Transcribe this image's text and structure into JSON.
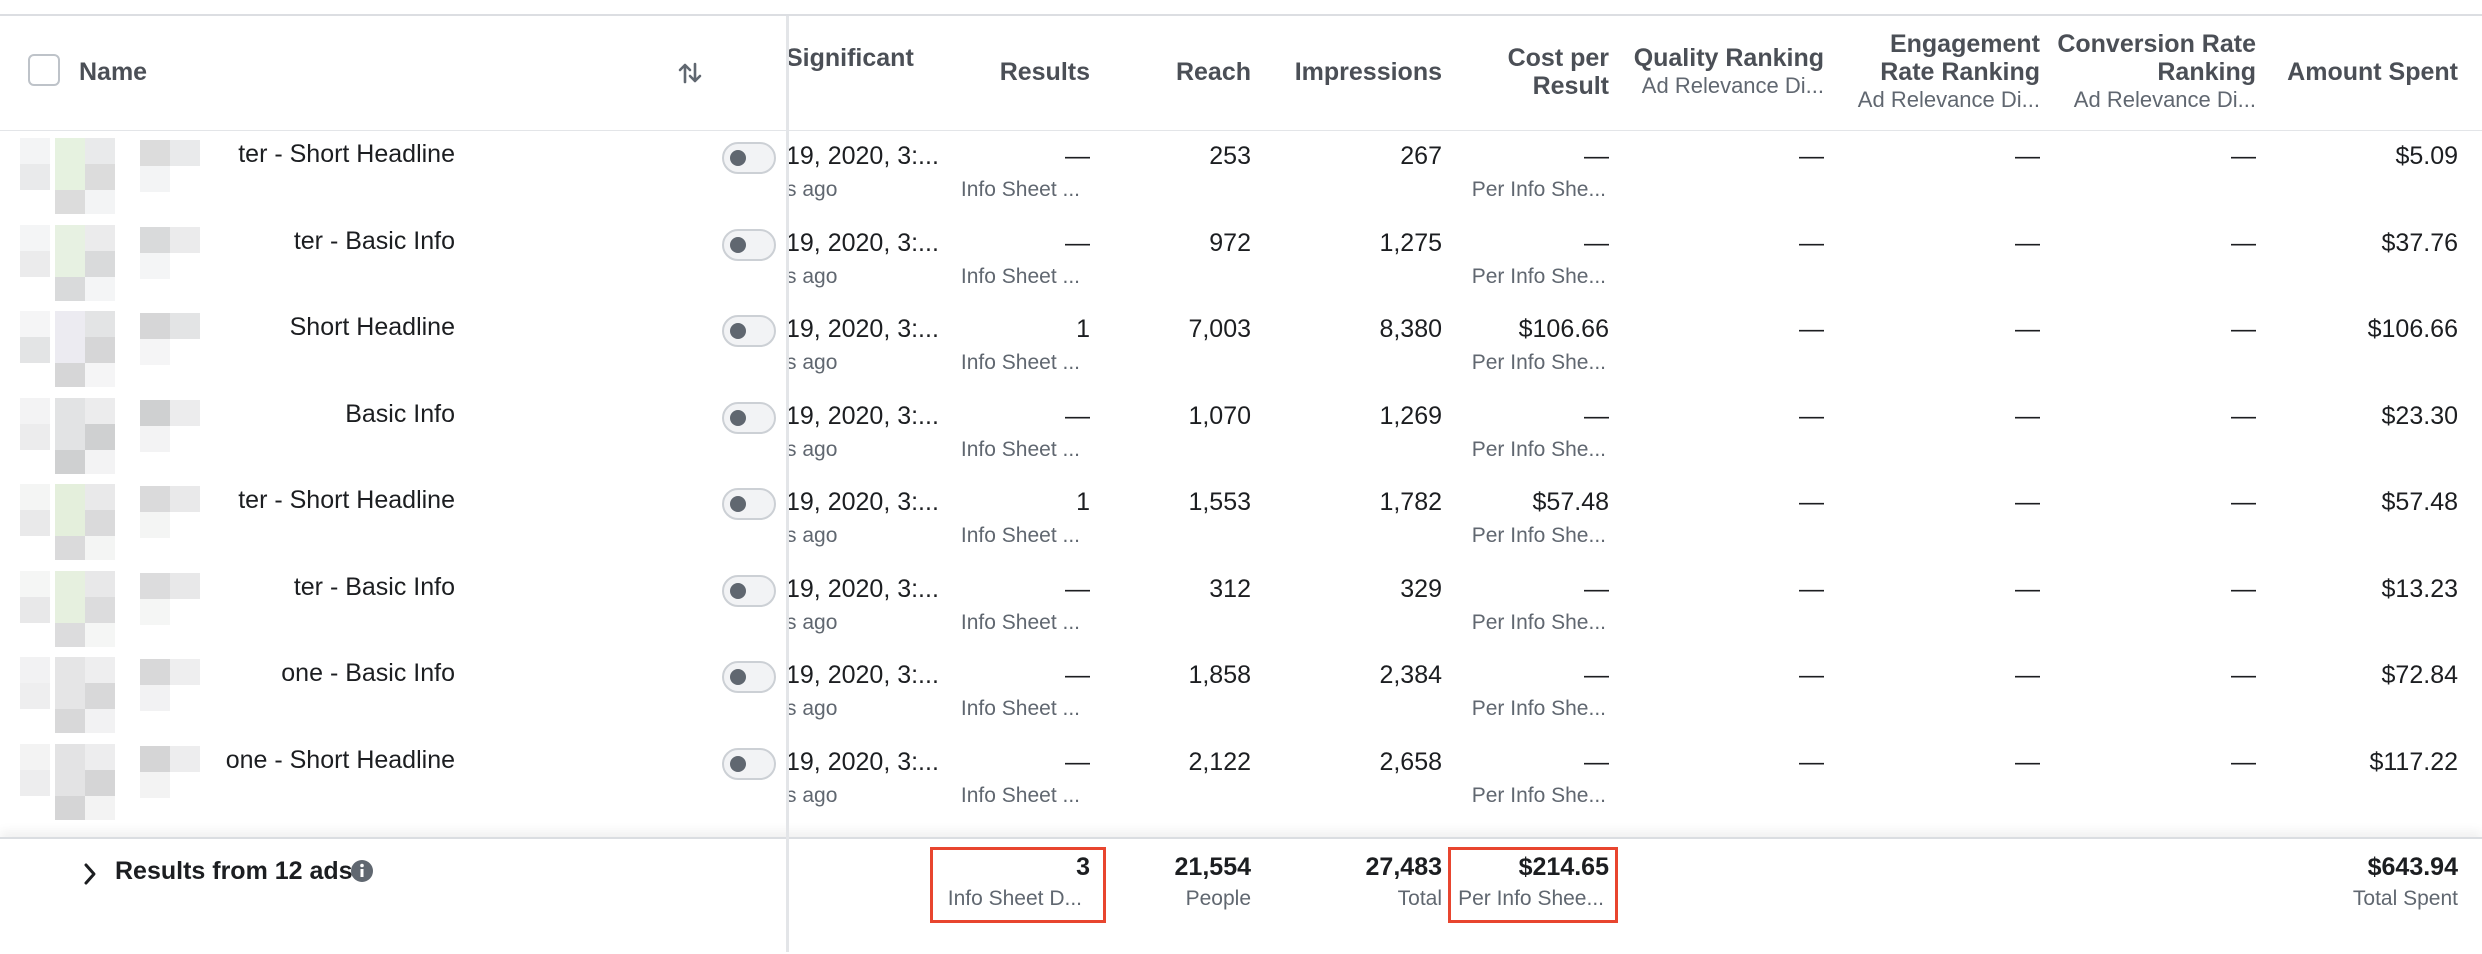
{
  "header": {
    "name": "Name",
    "significant": "Significant",
    "results": "Results",
    "reach": "Reach",
    "impressions": "Impressions",
    "cost_per_result_1": "Cost per",
    "cost_per_result_2": "Result",
    "quality_ranking": "Quality Ranking",
    "quality_ranking_sub": "Ad Relevance Di...",
    "engagement_1": "Engagement",
    "engagement_2": "Rate Ranking",
    "engagement_sub": "Ad Relevance Di...",
    "conversion_1": "Conversion Rate",
    "conversion_2": "Ranking",
    "conversion_sub": "Ad Relevance Di...",
    "amount_spent": "Amount Spent"
  },
  "rows": [
    {
      "name": "ter - Short Headline",
      "date": "19, 2020, 3:...",
      "ago": "s ago",
      "results": "—",
      "results_sub": "Info Sheet ...",
      "reach": "253",
      "impressions": "267",
      "cost": "—",
      "cost_sub": "Per Info She...",
      "quality": "—",
      "engagement": "—",
      "conversion": "—",
      "spent": "$5.09"
    },
    {
      "name": "ter - Basic Info",
      "date": "19, 2020, 3:...",
      "ago": "s ago",
      "results": "—",
      "results_sub": "Info Sheet ...",
      "reach": "972",
      "impressions": "1,275",
      "cost": "—",
      "cost_sub": "Per Info She...",
      "quality": "—",
      "engagement": "—",
      "conversion": "—",
      "spent": "$37.76"
    },
    {
      "name": "Short Headline",
      "date": "19, 2020, 3:...",
      "ago": "s ago",
      "results": "1",
      "results_sub": "Info Sheet ...",
      "reach": "7,003",
      "impressions": "8,380",
      "cost": "$106.66",
      "cost_sub": "Per Info She...",
      "quality": "—",
      "engagement": "—",
      "conversion": "—",
      "spent": "$106.66"
    },
    {
      "name": "Basic Info",
      "date": "19, 2020, 3:...",
      "ago": "s ago",
      "results": "—",
      "results_sub": "Info Sheet ...",
      "reach": "1,070",
      "impressions": "1,269",
      "cost": "—",
      "cost_sub": "Per Info She...",
      "quality": "—",
      "engagement": "—",
      "conversion": "—",
      "spent": "$23.30"
    },
    {
      "name": "ter - Short Headline",
      "date": "19, 2020, 3:...",
      "ago": "s ago",
      "results": "1",
      "results_sub": "Info Sheet ...",
      "reach": "1,553",
      "impressions": "1,782",
      "cost": "$57.48",
      "cost_sub": "Per Info She...",
      "quality": "—",
      "engagement": "—",
      "conversion": "—",
      "spent": "$57.48"
    },
    {
      "name": "ter - Basic Info",
      "date": "19, 2020, 3:...",
      "ago": "s ago",
      "results": "—",
      "results_sub": "Info Sheet ...",
      "reach": "312",
      "impressions": "329",
      "cost": "—",
      "cost_sub": "Per Info She...",
      "quality": "—",
      "engagement": "—",
      "conversion": "—",
      "spent": "$13.23"
    },
    {
      "name": "one - Basic Info",
      "date": "19, 2020, 3:...",
      "ago": "s ago",
      "results": "—",
      "results_sub": "Info Sheet ...",
      "reach": "1,858",
      "impressions": "2,384",
      "cost": "—",
      "cost_sub": "Per Info She...",
      "quality": "—",
      "engagement": "—",
      "conversion": "—",
      "spent": "$72.84"
    },
    {
      "name": "one - Short Headline",
      "date": "19, 2020, 3:...",
      "ago": "s ago",
      "results": "—",
      "results_sub": "Info Sheet ...",
      "reach": "2,122",
      "impressions": "2,658",
      "cost": "—",
      "cost_sub": "Per Info She...",
      "quality": "—",
      "engagement": "—",
      "conversion": "—",
      "spent": "$117.22"
    }
  ],
  "footer": {
    "label": "Results from 12 ads",
    "results": "3",
    "results_sub": "Info Sheet D...",
    "reach": "21,554",
    "reach_sub": "People",
    "impressions": "27,483",
    "impressions_sub": "Total",
    "cost": "$214.65",
    "cost_sub": "Per Info Shee...",
    "spent": "$643.94",
    "spent_sub": "Total Spent"
  },
  "colors": {
    "highlight": "#e8452f",
    "header_text": "#4b4f56",
    "secondary_text": "#606770"
  }
}
